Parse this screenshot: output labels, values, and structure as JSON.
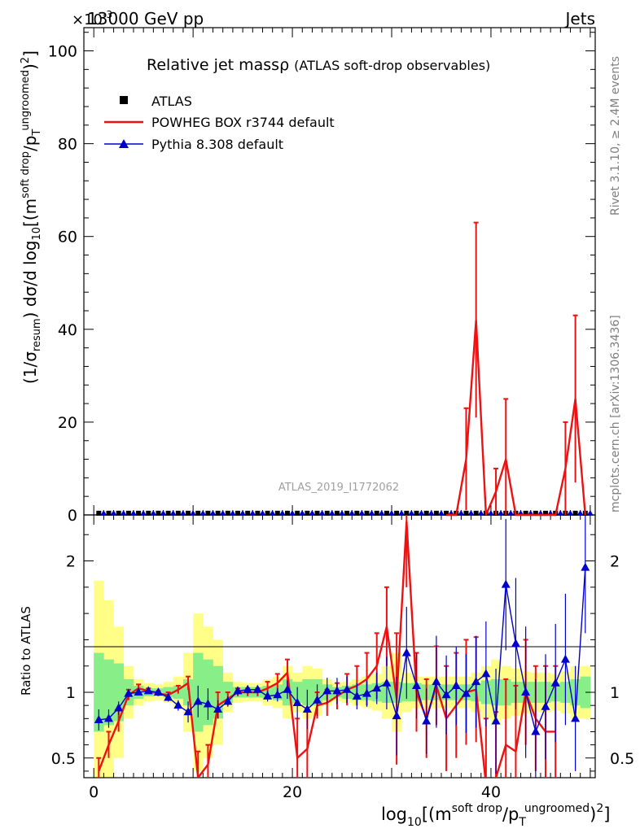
{
  "header": {
    "left": "13000 GeV pp",
    "right": "Jets",
    "exponent": "×10",
    "exponent_power": "-3"
  },
  "side_labels": {
    "rivet": "Rivet 3.1.10, ≥ 2.4M events",
    "mcplots": "mcplots.cern.ch [arXiv:1306.3436]"
  },
  "watermark": "ATLAS_2019_I1772062",
  "legend": {
    "title_main": "Relative jet massρ",
    "title_sub": "(ATLAS soft-drop observables)",
    "entries": [
      {
        "label": "ATLAS",
        "color": "#000000",
        "marker": "square"
      },
      {
        "label": "POWHEG BOX r3744 default",
        "color": "#ee1111",
        "marker": "line"
      },
      {
        "label": "Pythia 8.308 default",
        "color": "#0000cc",
        "marker": "triangle"
      }
    ]
  },
  "axes": {
    "ylabel_top_parts": [
      "(1/σ",
      "resum",
      ") dσ/d log",
      "10",
      "[(m",
      "soft drop",
      "/p",
      "T",
      "ungroomed",
      ")",
      "2",
      "]"
    ],
    "ylabel_bottom": "Ratio to ATLAS",
    "xlabel_parts": [
      "log",
      "10",
      "[(m",
      "soft drop",
      "/p",
      "T",
      "ungroomed",
      ")",
      "2",
      "]"
    ]
  },
  "chart_data": [
    {
      "type": "line",
      "panel": "main",
      "xlim": [
        -1,
        50.5
      ],
      "ylim": [
        0,
        105
      ],
      "y_unit_scale": "×10^-3",
      "x_ticks": [
        0,
        20,
        40
      ],
      "y_ticks": [
        0,
        20,
        40,
        60,
        80,
        100
      ],
      "series": [
        {
          "name": "ATLAS",
          "x": [
            0,
            1,
            2,
            3,
            4,
            5,
            6,
            7,
            8,
            9,
            10,
            11,
            12,
            13,
            14,
            15,
            16,
            17,
            18,
            19,
            20,
            21,
            22,
            23,
            24,
            25,
            26,
            27,
            28,
            29,
            30,
            31,
            32,
            33,
            34,
            35,
            36,
            37,
            38,
            39,
            40,
            41,
            42,
            43,
            44,
            45,
            46,
            47,
            48,
            49
          ],
          "y": [
            0.2,
            0.2,
            0.2,
            0.2,
            0.2,
            0.2,
            0.2,
            0.2,
            0.2,
            0.2,
            0.2,
            0.2,
            0.2,
            0.2,
            0.2,
            0.2,
            0.2,
            0.2,
            0.2,
            0.2,
            0.2,
            0.2,
            0.2,
            0.2,
            0.2,
            0.2,
            0.2,
            0.2,
            0.2,
            0.2,
            0.2,
            0.2,
            0.2,
            0.2,
            0.2,
            0.2,
            0.2,
            0.2,
            0.2,
            0.2,
            0.2,
            0.2,
            0.2,
            0.2,
            0.2,
            0.2,
            0.2,
            0.2,
            0.2,
            0.2
          ]
        },
        {
          "name": "POWHEG BOX r3744 default",
          "x": [
            35.5,
            36.5,
            37.5,
            38.5,
            39.5,
            40.5,
            41.5,
            42.5,
            43.5,
            44.5,
            45.5,
            46.5,
            47.5,
            48.5,
            49.5
          ],
          "y": [
            0,
            0,
            12,
            42,
            0,
            5,
            12,
            0,
            0,
            0,
            0,
            0,
            10,
            25,
            0
          ],
          "err": [
            0,
            0,
            11,
            21,
            0,
            5,
            13,
            0,
            0,
            0,
            0,
            0,
            10,
            18,
            0
          ]
        },
        {
          "name": "Pythia 8.308 default",
          "x": [
            0,
            49
          ],
          "y": [
            0.2,
            0.2
          ]
        }
      ]
    },
    {
      "type": "line",
      "panel": "ratio",
      "xlim": [
        -1,
        50.5
      ],
      "ylim": [
        0.35,
        2.35
      ],
      "y_ticks": [
        0.5,
        1,
        2
      ],
      "series": [
        {
          "name": "POWHEG BOX r3744 default",
          "x": [
            0.5,
            1.5,
            2.5,
            3.5,
            4.5,
            5.5,
            6.5,
            7.5,
            8.5,
            9.5,
            10.5,
            11.5,
            12.5,
            13.5,
            14.5,
            15.5,
            16.5,
            17.5,
            18.5,
            19.5,
            20.5,
            21.5,
            22.5,
            23.5,
            24.5,
            25.5,
            26.5,
            27.5,
            28.5,
            29.5,
            30.5,
            31.5,
            32.5,
            33.5,
            34.5,
            35.5,
            36.5,
            37.5,
            38.5,
            39.5,
            40.5,
            41.5,
            42.5,
            43.5,
            44.5,
            45.5,
            46.5
          ],
          "y": [
            0.4,
            0.6,
            0.78,
            0.98,
            1.03,
            1.01,
            0.99,
            0.98,
            1.02,
            1.07,
            0.35,
            0.45,
            0.9,
            0.95,
            1.0,
            1.0,
            1.0,
            1.03,
            1.07,
            1.15,
            0.5,
            0.57,
            0.9,
            0.92,
            0.97,
            1.02,
            1.05,
            1.1,
            1.2,
            1.5,
            0.95,
            2.3,
            1.0,
            0.8,
            1.05,
            0.8,
            0.9,
            1.0,
            1.02,
            0.3,
            0.35,
            0.6,
            0.55,
            1.0,
            0.8,
            0.7,
            0.7
          ],
          "err": [
            0.1,
            0.1,
            0.08,
            0.04,
            0.03,
            0.02,
            0.02,
            0.02,
            0.03,
            0.05,
            0.2,
            0.15,
            0.1,
            0.05,
            0.03,
            0.03,
            0.03,
            0.05,
            0.07,
            0.1,
            0.3,
            0.3,
            0.1,
            0.1,
            0.1,
            0.12,
            0.15,
            0.2,
            0.25,
            0.3,
            0.5,
            0.5,
            0.3,
            0.3,
            0.3,
            0.4,
            0.4,
            0.4,
            0.4,
            0.5,
            0.5,
            0.5,
            0.5,
            0.4,
            0.4,
            0.5,
            0.5
          ]
        },
        {
          "name": "Pythia 8.308 default",
          "x": [
            0.5,
            1.5,
            2.5,
            3.5,
            4.5,
            5.5,
            6.5,
            7.5,
            8.5,
            9.5,
            10.5,
            11.5,
            12.5,
            13.5,
            14.5,
            15.5,
            16.5,
            17.5,
            18.5,
            19.5,
            20.5,
            21.5,
            22.5,
            23.5,
            24.5,
            25.5,
            26.5,
            27.5,
            28.5,
            29.5,
            30.5,
            31.5,
            32.5,
            33.5,
            34.5,
            35.5,
            36.5,
            37.5,
            38.5,
            39.5,
            40.5,
            41.5,
            42.5,
            43.5,
            44.5,
            45.5,
            46.5,
            47.5,
            48.5,
            49.5
          ],
          "y": [
            0.79,
            0.8,
            0.88,
            0.99,
            1.0,
            1.01,
            1.0,
            0.96,
            0.9,
            0.85,
            0.93,
            0.91,
            0.87,
            0.93,
            1.01,
            1.02,
            1.02,
            0.97,
            0.98,
            1.02,
            0.92,
            0.87,
            0.94,
            1.01,
            1.01,
            1.02,
            0.97,
            0.99,
            1.03,
            1.07,
            0.82,
            1.3,
            1.05,
            0.78,
            1.08,
            0.98,
            1.05,
            0.99,
            1.08,
            1.14,
            0.78,
            1.82,
            1.37,
            1.0,
            0.7,
            0.89,
            1.07,
            1.25,
            0.8,
            1.95
          ],
          "err": [
            0.08,
            0.07,
            0.05,
            0.03,
            0.02,
            0.02,
            0.02,
            0.03,
            0.04,
            0.08,
            0.12,
            0.12,
            0.07,
            0.04,
            0.03,
            0.03,
            0.03,
            0.04,
            0.05,
            0.07,
            0.12,
            0.15,
            0.12,
            0.1,
            0.1,
            0.1,
            0.1,
            0.1,
            0.12,
            0.2,
            0.3,
            0.35,
            0.25,
            0.25,
            0.35,
            0.3,
            0.3,
            0.3,
            0.35,
            0.4,
            0.4,
            0.5,
            0.5,
            0.5,
            0.4,
            0.4,
            0.45,
            0.5,
            0.4,
            0.5
          ]
        }
      ],
      "bands": [
        {
          "name": "green",
          "halfwidth": [
            0.3,
            0.25,
            0.22,
            0.1,
            0.05,
            0.03,
            0.03,
            0.04,
            0.05,
            0.1,
            0.3,
            0.25,
            0.2,
            0.08,
            0.04,
            0.04,
            0.04,
            0.05,
            0.06,
            0.1,
            0.08,
            0.1,
            0.1,
            0.06,
            0.04,
            0.05,
            0.06,
            0.06,
            0.07,
            0.08,
            0.08,
            0.07,
            0.07,
            0.06,
            0.06,
            0.06,
            0.06,
            0.06,
            0.07,
            0.09,
            0.1,
            0.1,
            0.08,
            0.08,
            0.08,
            0.08,
            0.07,
            0.08,
            0.1,
            0.12
          ]
        },
        {
          "name": "yellow",
          "halfwidth": [
            0.85,
            0.7,
            0.5,
            0.2,
            0.1,
            0.07,
            0.06,
            0.08,
            0.12,
            0.3,
            0.6,
            0.5,
            0.4,
            0.15,
            0.08,
            0.07,
            0.07,
            0.1,
            0.12,
            0.2,
            0.15,
            0.2,
            0.18,
            0.1,
            0.07,
            0.08,
            0.1,
            0.12,
            0.14,
            0.2,
            0.3,
            0.15,
            0.12,
            0.12,
            0.12,
            0.12,
            0.12,
            0.12,
            0.15,
            0.2,
            0.25,
            0.2,
            0.18,
            0.16,
            0.15,
            0.15,
            0.14,
            0.16,
            0.2,
            0.2
          ]
        }
      ]
    }
  ]
}
